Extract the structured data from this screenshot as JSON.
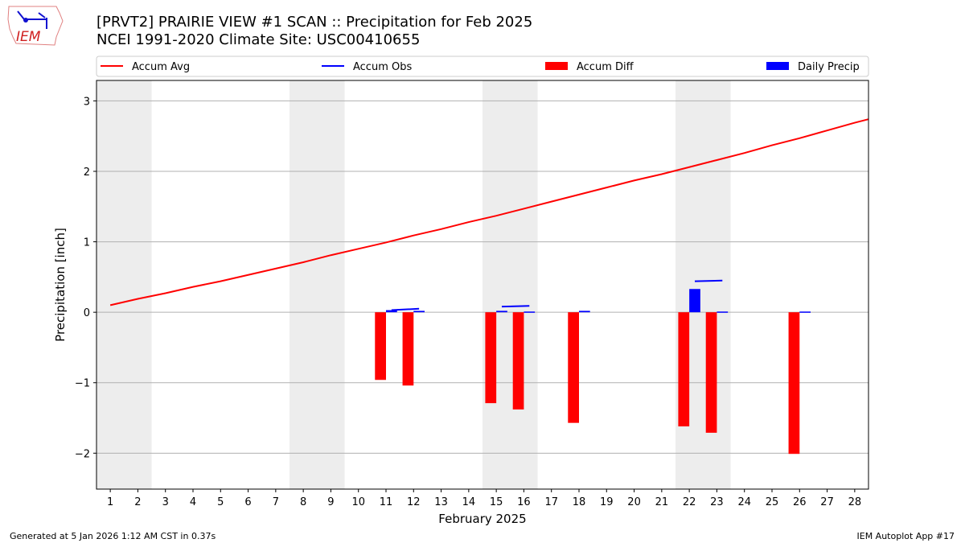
{
  "title_line1": "[PRVT2] PRAIRIE VIEW #1 SCAN :: Precipitation for Feb 2025",
  "title_line2": "NCEI 1991-2020 Climate Site: USC00410655",
  "logo_text": "IEM",
  "footer_left": "Generated at 5 Jan 2026 1:12 AM CST in 0.37s",
  "footer_right": "IEM Autoplot App #17",
  "colors": {
    "avg": "#ff0000",
    "obs": "#0000ff",
    "diff": "#ff0000",
    "daily": "#0000ff",
    "weekend": "#ededed",
    "grid": "#b0b0b0"
  },
  "chart_data": {
    "type": "bar",
    "xlabel": "February 2025",
    "ylabel": "Precipitation [inch]",
    "xlim": [
      0.5,
      28.5
    ],
    "ylim": [
      -2.51,
      3.29
    ],
    "grid": true,
    "legend_placement": "top",
    "legend": [
      "Accum Avg",
      "Accum Obs",
      "Accum Diff",
      "Daily Precip"
    ],
    "x_ticks": [
      1,
      2,
      3,
      4,
      5,
      6,
      7,
      8,
      9,
      10,
      11,
      12,
      13,
      14,
      15,
      16,
      17,
      18,
      19,
      20,
      21,
      22,
      23,
      24,
      25,
      26,
      27,
      28
    ],
    "y_ticks": [
      3,
      2,
      1,
      0,
      -1,
      -2
    ],
    "y_tick_labels": [
      "3",
      "2",
      "1",
      "0",
      "−1",
      "−2"
    ],
    "weekend_spans": [
      [
        0.5,
        2.5
      ],
      [
        7.5,
        9.5
      ],
      [
        14.5,
        16.5
      ],
      [
        21.5,
        23.5
      ]
    ],
    "accum_avg": {
      "x": [
        1,
        2,
        3,
        4,
        5,
        6,
        7,
        8,
        9,
        10,
        11,
        12,
        13,
        14,
        15,
        16,
        17,
        18,
        19,
        20,
        21,
        22,
        23,
        24,
        25,
        26,
        27,
        28,
        28.5
      ],
      "y": [
        0.1,
        0.19,
        0.27,
        0.36,
        0.44,
        0.53,
        0.62,
        0.71,
        0.81,
        0.9,
        0.99,
        1.09,
        1.18,
        1.28,
        1.37,
        1.47,
        1.57,
        1.67,
        1.77,
        1.87,
        1.96,
        2.06,
        2.16,
        2.26,
        2.37,
        2.47,
        2.58,
        2.69,
        2.74
      ]
    },
    "accum_obs_segments": [
      {
        "x": [
          11,
          12
        ],
        "y": [
          0.03,
          0.05
        ]
      },
      {
        "x": [
          15,
          16
        ],
        "y": [
          0.08,
          0.09
        ]
      },
      {
        "x": [
          22,
          23
        ],
        "y": [
          0.44,
          0.45
        ]
      }
    ],
    "accum_diff": {
      "x": [
        11,
        12,
        15,
        16,
        18,
        22,
        23,
        26
      ],
      "y": [
        -0.96,
        -1.04,
        -1.29,
        -1.38,
        -1.57,
        -1.62,
        -1.71,
        -2.01
      ]
    },
    "daily_precip": {
      "x": [
        11,
        12,
        15,
        16,
        18,
        22,
        23,
        26
      ],
      "y": [
        0.03,
        0.02,
        0.02,
        0.01,
        0.02,
        0.33,
        0.01,
        0.01
      ]
    }
  }
}
